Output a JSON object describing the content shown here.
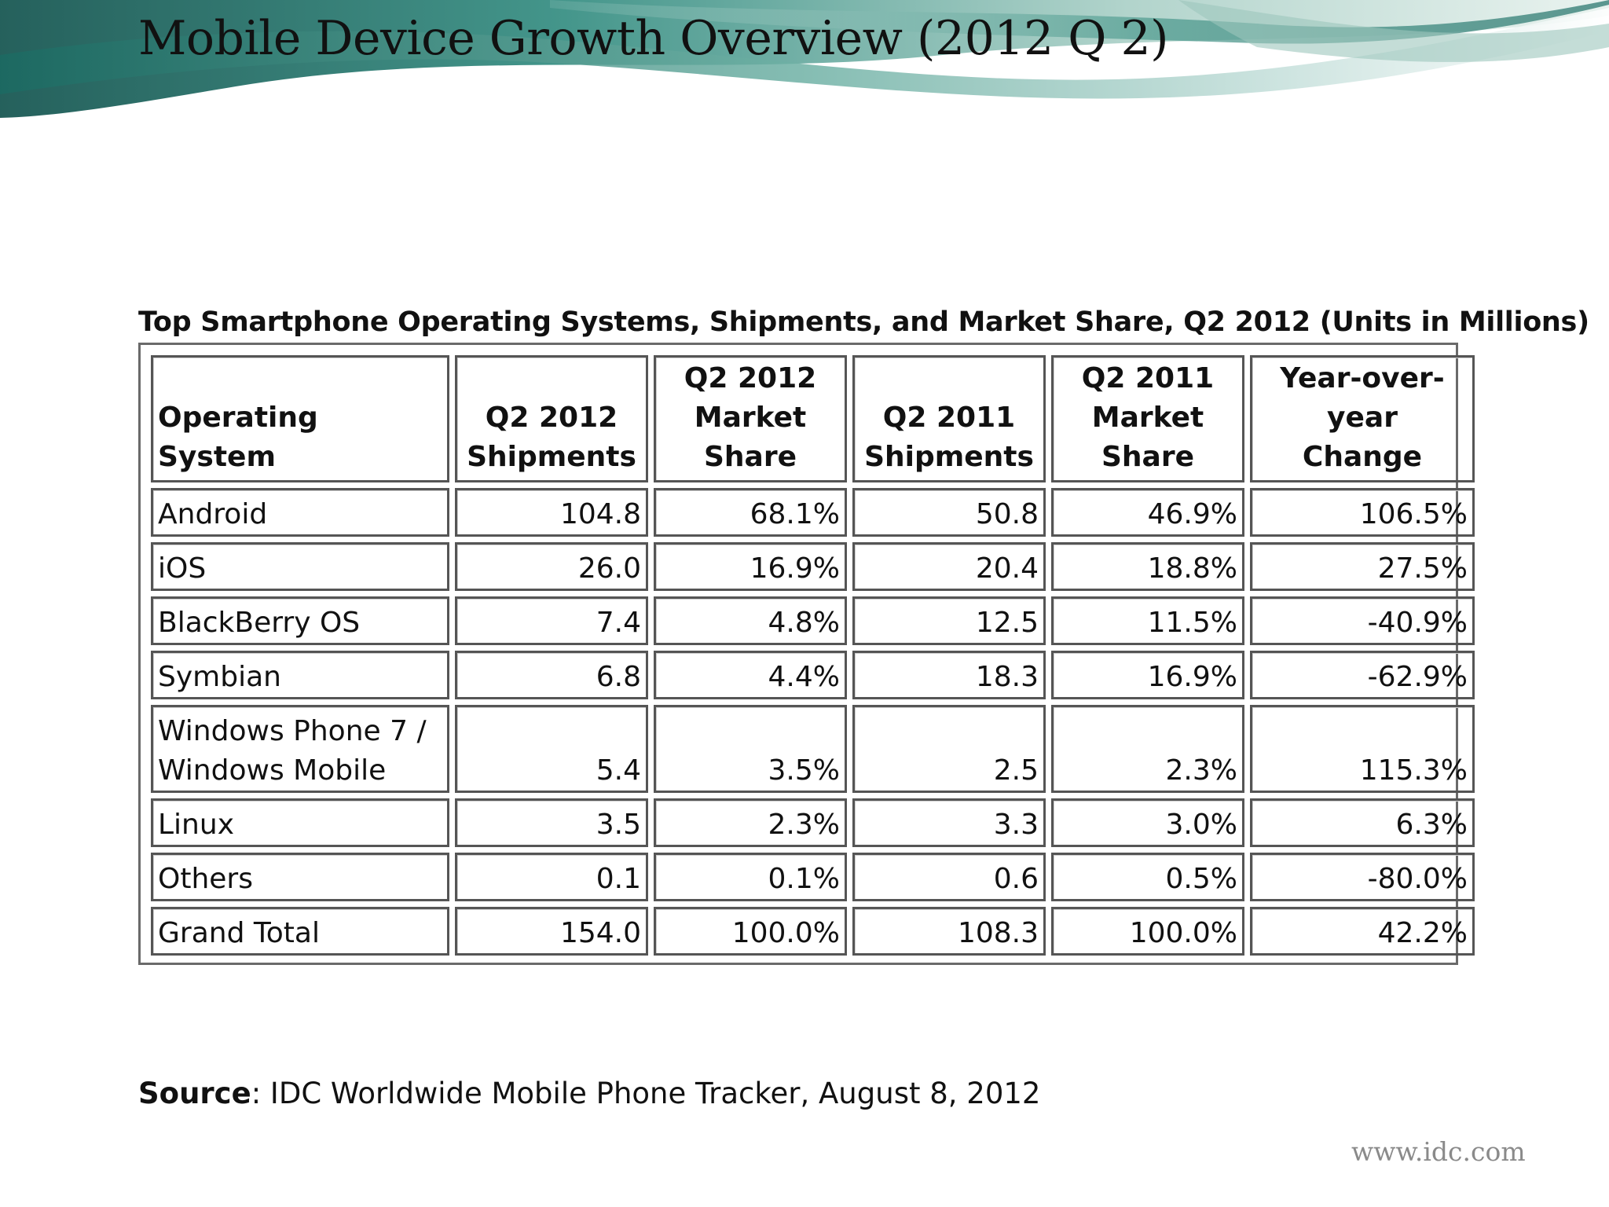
{
  "slide": {
    "title": "Mobile Device Growth Overview (2012 Q 2)",
    "footer_url": "www.idc.com"
  },
  "table": {
    "caption": "Top Smartphone Operating Systems, Shipments, and Market Share, Q2 2012 (Units in Millions)",
    "headers": [
      [
        "Operating System"
      ],
      [
        "Q2 2012",
        "Shipments"
      ],
      [
        "Q2 2012",
        "Market",
        "Share"
      ],
      [
        "Q2 2011",
        "Shipments"
      ],
      [
        "Q2 2011",
        "Market",
        "Share"
      ],
      [
        "Year-over-year",
        "Change"
      ]
    ],
    "rows": [
      {
        "os": [
          "Android"
        ],
        "q2_2012_shipments": "104.8",
        "q2_2012_share": "68.1%",
        "q2_2011_shipments": "50.8",
        "q2_2011_share": "46.9%",
        "yoy_change": "106.5%"
      },
      {
        "os": [
          "iOS"
        ],
        "q2_2012_shipments": "26.0",
        "q2_2012_share": "16.9%",
        "q2_2011_shipments": "20.4",
        "q2_2011_share": "18.8%",
        "yoy_change": "27.5%"
      },
      {
        "os": [
          "BlackBerry OS"
        ],
        "q2_2012_shipments": "7.4",
        "q2_2012_share": "4.8%",
        "q2_2011_shipments": "12.5",
        "q2_2011_share": "11.5%",
        "yoy_change": "-40.9%"
      },
      {
        "os": [
          "Symbian"
        ],
        "q2_2012_shipments": "6.8",
        "q2_2012_share": "4.4%",
        "q2_2011_shipments": "18.3",
        "q2_2011_share": "16.9%",
        "yoy_change": "-62.9%"
      },
      {
        "os": [
          "Windows Phone 7 /",
          "Windows Mobile"
        ],
        "q2_2012_shipments": "5.4",
        "q2_2012_share": "3.5%",
        "q2_2011_shipments": "2.5",
        "q2_2011_share": "2.3%",
        "yoy_change": "115.3%"
      },
      {
        "os": [
          "Linux"
        ],
        "q2_2012_shipments": "3.5",
        "q2_2012_share": "2.3%",
        "q2_2011_shipments": "3.3",
        "q2_2011_share": "3.0%",
        "yoy_change": "6.3%"
      },
      {
        "os": [
          "Others"
        ],
        "q2_2012_shipments": "0.1",
        "q2_2012_share": "0.1%",
        "q2_2011_shipments": "0.6",
        "q2_2011_share": "0.5%",
        "yoy_change": "-80.0%"
      },
      {
        "os": [
          "Grand Total"
        ],
        "q2_2012_shipments": "154.0",
        "q2_2012_share": "100.0%",
        "q2_2011_shipments": "108.3",
        "q2_2011_share": "100.0%",
        "yoy_change": "42.2%"
      }
    ]
  },
  "source": {
    "label": "Source",
    "text": ": IDC Worldwide Mobile Phone Tracker, August 8, 2012"
  }
}
